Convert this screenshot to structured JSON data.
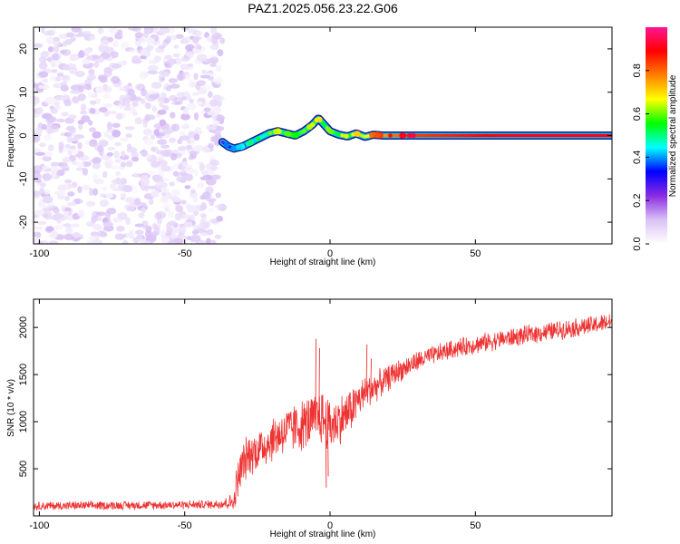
{
  "figure": {
    "title": "PAZ1.2025.056.23.22.G06"
  },
  "chart_data": [
    {
      "type": "heatmap",
      "xlabel": "Height of straight line (km)",
      "ylabel": "Frequency (Hz)",
      "xlim": [
        -102,
        97
      ],
      "ylim": [
        -25,
        25
      ],
      "x_ticks": [
        -100,
        -50,
        0,
        50
      ],
      "x_tick_labels": [
        "-100",
        "-50",
        "0",
        "50"
      ],
      "y_ticks": [
        -20,
        -10,
        0,
        10,
        20
      ],
      "y_tick_labels": [
        "-20",
        "-10",
        "0",
        "10",
        "20"
      ],
      "colorbar": {
        "label": "Normalized spectral amplitude",
        "range": [
          0,
          1
        ],
        "ticks": [
          0.0,
          0.2,
          0.4,
          0.6,
          0.8
        ],
        "tick_labels": [
          "0.0",
          "0.2",
          "0.4",
          "0.6",
          "0.8"
        ],
        "colormap": [
          "#ffffff",
          "#d9c2f5",
          "#8a2be2",
          "#0000ff",
          "#00ffff",
          "#00ff00",
          "#ffff00",
          "#ff8000",
          "#ff0000",
          "#ff1493"
        ]
      },
      "noise_region": {
        "x_range": [
          -102,
          -37
        ],
        "y_range": [
          -25,
          25
        ],
        "amplitude_range": [
          0.02,
          0.12
        ]
      },
      "ridge": {
        "x": [
          -37,
          -35,
          -33,
          -30,
          -27,
          -24,
          -21,
          -18,
          -15,
          -12,
          -9,
          -6,
          -4,
          -2,
          0,
          3,
          6,
          9,
          12,
          15,
          18,
          21,
          24,
          27,
          30,
          40,
          50,
          60,
          70,
          80,
          90,
          97
        ],
        "frequency": [
          -1.5,
          -2.5,
          -3,
          -2.5,
          -1.5,
          -0.5,
          0.5,
          1,
          0.5,
          0,
          1,
          2.5,
          4,
          2.5,
          1,
          0.2,
          -0.2,
          0.5,
          -0.3,
          0.2,
          0,
          0,
          0,
          0,
          0,
          0,
          0,
          0,
          0,
          0,
          0,
          0
        ],
        "amplitude": [
          0.25,
          0.3,
          0.3,
          0.35,
          0.4,
          0.45,
          0.5,
          0.55,
          0.5,
          0.45,
          0.5,
          0.55,
          0.6,
          0.55,
          0.5,
          0.55,
          0.55,
          0.6,
          0.65,
          0.7,
          0.75,
          0.78,
          0.8,
          0.82,
          0.84,
          0.86,
          0.88,
          0.9,
          0.9,
          0.9,
          0.9,
          0.9
        ]
      }
    },
    {
      "type": "line",
      "xlabel": "Height of straight line (km)",
      "ylabel": "SNR (10 * v/v)",
      "xlim": [
        -102,
        97
      ],
      "ylim": [
        0,
        2300
      ],
      "x_ticks": [
        -100,
        -50,
        0,
        50
      ],
      "x_tick_labels": [
        "-100",
        "-50",
        "0",
        "50"
      ],
      "y_ticks": [
        500,
        1000,
        1500,
        2000
      ],
      "y_tick_labels": [
        "500",
        "1000",
        "1500",
        "2000"
      ],
      "series": [
        {
          "color": "#ee3333",
          "x": [
            -102,
            -90,
            -80,
            -70,
            -60,
            -50,
            -40,
            -33,
            -32,
            -30,
            -28,
            -25,
            -22,
            -20,
            -18,
            -15,
            -12,
            -10,
            -8,
            -6,
            -4,
            -3,
            -2,
            0,
            2,
            5,
            8,
            10,
            12,
            15,
            18,
            20,
            22,
            25,
            30,
            35,
            40,
            45,
            50,
            60,
            70,
            80,
            90,
            97
          ],
          "y": [
            105,
            108,
            110,
            112,
            115,
            118,
            122,
            150,
            350,
            560,
            650,
            700,
            760,
            810,
            860,
            900,
            940,
            960,
            990,
            1010,
            1040,
            1060,
            1020,
            960,
            1000,
            1060,
            1160,
            1240,
            1300,
            1360,
            1420,
            1460,
            1510,
            1560,
            1640,
            1700,
            1750,
            1790,
            1820,
            1880,
            1930,
            1980,
            2020,
            2060
          ],
          "noise": [
            50,
            50,
            50,
            50,
            50,
            50,
            50,
            100,
            260,
            250,
            250,
            250,
            260,
            260,
            270,
            280,
            290,
            300,
            310,
            310,
            330,
            340,
            350,
            320,
            300,
            280,
            250,
            220,
            200,
            180,
            160,
            150,
            140,
            130,
            120,
            110,
            110,
            110,
            110,
            110,
            110,
            110,
            110,
            110
          ]
        }
      ],
      "spikes": [
        {
          "x": -5,
          "y": 1880
        },
        {
          "x": -3.8,
          "y": 1780
        },
        {
          "x": -1.5,
          "y": 300
        },
        {
          "x": -0.8,
          "y": 420
        },
        {
          "x": 12.5,
          "y": 1820
        },
        {
          "x": 14,
          "y": 1670
        }
      ]
    }
  ]
}
